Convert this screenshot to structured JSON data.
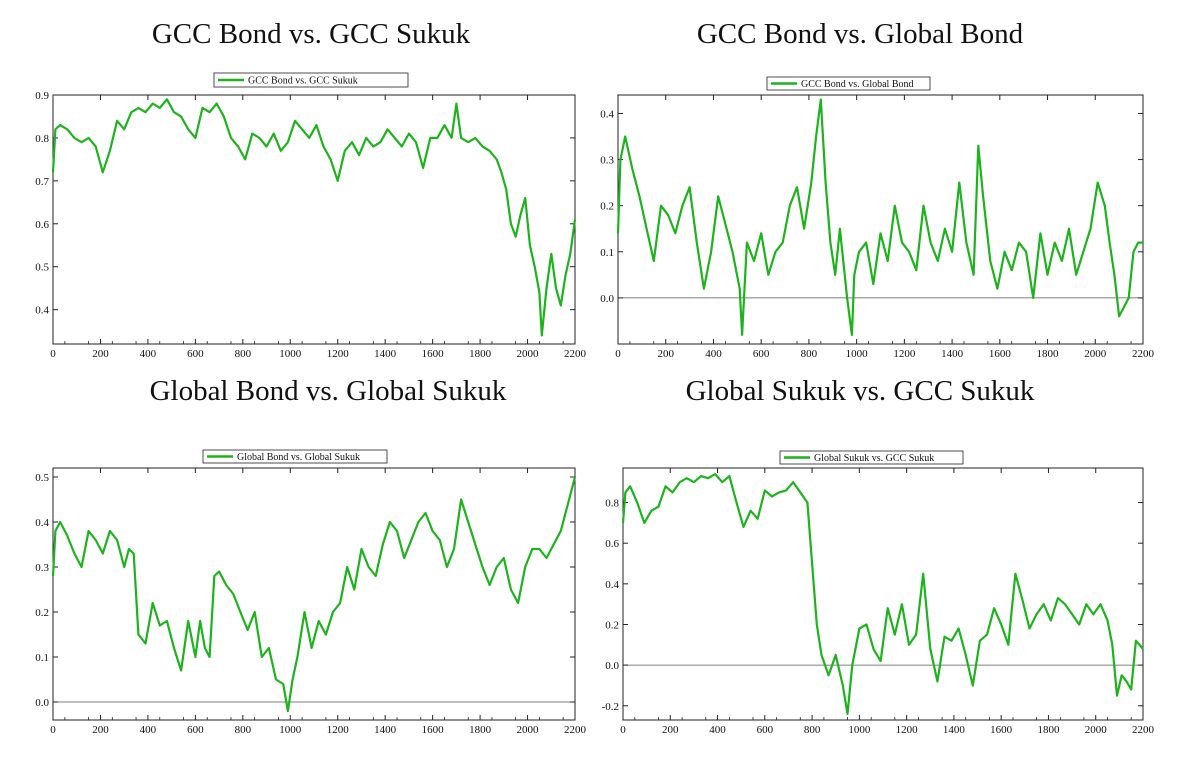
{
  "chart_data": [
    {
      "type": "line",
      "title": "GCC Bond vs. GCC Sukuk",
      "legend": "GCC Bond vs. GCC Sukuk",
      "xlim": [
        0,
        2200
      ],
      "ylim": [
        0.32,
        0.9
      ],
      "xticks": [
        0,
        200,
        400,
        600,
        800,
        1000,
        1200,
        1400,
        1600,
        1800,
        2000,
        2200
      ],
      "yticks": [
        0.4,
        0.5,
        0.6,
        0.7,
        0.8,
        0.9
      ],
      "ytick_labels": [
        "0.4",
        "0.5",
        "0.6",
        "0.7",
        "0.8",
        "0.9"
      ],
      "zero_line": false,
      "color": "#1db31d",
      "series": [
        {
          "x": [
            0,
            10,
            30,
            60,
            90,
            120,
            150,
            180,
            210,
            240,
            270,
            300,
            330,
            360,
            390,
            420,
            450,
            480,
            510,
            540,
            570,
            600,
            630,
            660,
            690,
            720,
            750,
            780,
            810,
            840,
            870,
            900,
            930,
            960,
            990,
            1020,
            1050,
            1080,
            1110,
            1140,
            1170,
            1200,
            1230,
            1260,
            1290,
            1320,
            1350,
            1380,
            1410,
            1440,
            1470,
            1500,
            1530,
            1560,
            1590,
            1620,
            1650,
            1680,
            1700,
            1720,
            1750,
            1780,
            1810,
            1840,
            1870,
            1890,
            1910,
            1930,
            1950,
            1970,
            1990,
            2010,
            2030,
            2050,
            2060,
            2080,
            2100,
            2120,
            2140,
            2160,
            2180,
            2200
          ],
          "y": [
            0.72,
            0.82,
            0.83,
            0.82,
            0.8,
            0.79,
            0.8,
            0.78,
            0.72,
            0.77,
            0.84,
            0.82,
            0.86,
            0.87,
            0.86,
            0.88,
            0.87,
            0.89,
            0.86,
            0.85,
            0.82,
            0.8,
            0.87,
            0.86,
            0.88,
            0.85,
            0.8,
            0.78,
            0.75,
            0.81,
            0.8,
            0.78,
            0.81,
            0.77,
            0.79,
            0.84,
            0.82,
            0.8,
            0.83,
            0.78,
            0.75,
            0.7,
            0.77,
            0.79,
            0.76,
            0.8,
            0.78,
            0.79,
            0.82,
            0.8,
            0.78,
            0.81,
            0.79,
            0.73,
            0.8,
            0.8,
            0.83,
            0.8,
            0.88,
            0.8,
            0.79,
            0.8,
            0.78,
            0.77,
            0.75,
            0.72,
            0.68,
            0.6,
            0.57,
            0.62,
            0.66,
            0.55,
            0.5,
            0.44,
            0.34,
            0.45,
            0.53,
            0.45,
            0.41,
            0.48,
            0.53,
            0.61
          ]
        }
      ]
    },
    {
      "type": "line",
      "title": "GCC Bond vs. Global Bond",
      "legend": "GCC Bond vs. Global Bond",
      "xlim": [
        0,
        2200
      ],
      "ylim": [
        -0.1,
        0.44
      ],
      "xticks": [
        0,
        200,
        400,
        600,
        800,
        1000,
        1200,
        1400,
        1600,
        1800,
        2000,
        2200
      ],
      "yticks": [
        0.0,
        0.1,
        0.2,
        0.3,
        0.4
      ],
      "ytick_labels": [
        "0.0",
        "0.1",
        "0.2",
        "0.3",
        "0.4"
      ],
      "zero_line": true,
      "color": "#1db31d",
      "series": [
        {
          "x": [
            0,
            10,
            30,
            60,
            90,
            120,
            150,
            180,
            210,
            240,
            270,
            300,
            330,
            360,
            390,
            420,
            450,
            480,
            510,
            520,
            540,
            570,
            600,
            630,
            660,
            690,
            720,
            750,
            780,
            810,
            830,
            850,
            870,
            890,
            910,
            930,
            960,
            980,
            990,
            1010,
            1040,
            1070,
            1100,
            1130,
            1160,
            1190,
            1220,
            1250,
            1280,
            1310,
            1340,
            1370,
            1400,
            1430,
            1460,
            1490,
            1510,
            1530,
            1560,
            1590,
            1620,
            1650,
            1680,
            1710,
            1740,
            1770,
            1800,
            1830,
            1860,
            1890,
            1920,
            1950,
            1980,
            2010,
            2040,
            2060,
            2080,
            2100,
            2120,
            2140,
            2160,
            2180,
            2200
          ],
          "y": [
            0.14,
            0.3,
            0.35,
            0.28,
            0.22,
            0.15,
            0.08,
            0.2,
            0.18,
            0.14,
            0.2,
            0.24,
            0.12,
            0.02,
            0.1,
            0.22,
            0.16,
            0.1,
            0.02,
            -0.08,
            0.12,
            0.08,
            0.14,
            0.05,
            0.1,
            0.12,
            0.2,
            0.24,
            0.15,
            0.25,
            0.35,
            0.43,
            0.25,
            0.12,
            0.05,
            0.15,
            0.0,
            -0.08,
            0.05,
            0.1,
            0.12,
            0.03,
            0.14,
            0.08,
            0.2,
            0.12,
            0.1,
            0.06,
            0.2,
            0.12,
            0.08,
            0.15,
            0.1,
            0.25,
            0.12,
            0.05,
            0.33,
            0.22,
            0.08,
            0.02,
            0.1,
            0.06,
            0.12,
            0.1,
            0.0,
            0.14,
            0.05,
            0.12,
            0.08,
            0.15,
            0.05,
            0.1,
            0.15,
            0.25,
            0.2,
            0.12,
            0.05,
            -0.04,
            -0.02,
            0.0,
            0.1,
            0.12,
            0.12
          ]
        }
      ]
    },
    {
      "type": "line",
      "title": "Global Bond vs. Global Sukuk",
      "legend": "Global Bond vs. Global Sukuk",
      "xlim": [
        0,
        2200
      ],
      "ylim": [
        -0.04,
        0.52
      ],
      "xticks": [
        0,
        200,
        400,
        600,
        800,
        1000,
        1200,
        1400,
        1600,
        1800,
        2000,
        2200
      ],
      "yticks": [
        0.0,
        0.1,
        0.2,
        0.3,
        0.4,
        0.5
      ],
      "ytick_labels": [
        "0.0",
        "0.1",
        "0.2",
        "0.3",
        "0.4",
        "0.5"
      ],
      "zero_line": true,
      "color": "#1db31d",
      "series": [
        {
          "x": [
            0,
            10,
            30,
            60,
            90,
            120,
            150,
            180,
            210,
            240,
            270,
            300,
            320,
            340,
            360,
            390,
            420,
            450,
            480,
            510,
            540,
            570,
            600,
            620,
            640,
            660,
            680,
            700,
            730,
            760,
            790,
            820,
            850,
            880,
            910,
            940,
            970,
            990,
            1010,
            1030,
            1060,
            1090,
            1120,
            1150,
            1180,
            1210,
            1240,
            1270,
            1300,
            1330,
            1360,
            1390,
            1420,
            1450,
            1480,
            1510,
            1540,
            1570,
            1600,
            1630,
            1660,
            1690,
            1720,
            1750,
            1780,
            1810,
            1840,
            1870,
            1900,
            1930,
            1960,
            1990,
            2020,
            2050,
            2080,
            2110,
            2140,
            2170,
            2200
          ],
          "y": [
            0.28,
            0.38,
            0.4,
            0.37,
            0.33,
            0.3,
            0.38,
            0.36,
            0.33,
            0.38,
            0.36,
            0.3,
            0.34,
            0.33,
            0.15,
            0.13,
            0.22,
            0.17,
            0.18,
            0.12,
            0.07,
            0.18,
            0.1,
            0.18,
            0.12,
            0.1,
            0.28,
            0.29,
            0.26,
            0.24,
            0.2,
            0.16,
            0.2,
            0.1,
            0.12,
            0.05,
            0.04,
            -0.02,
            0.05,
            0.1,
            0.2,
            0.12,
            0.18,
            0.15,
            0.2,
            0.22,
            0.3,
            0.25,
            0.34,
            0.3,
            0.28,
            0.35,
            0.4,
            0.38,
            0.32,
            0.36,
            0.4,
            0.42,
            0.38,
            0.36,
            0.3,
            0.34,
            0.45,
            0.4,
            0.35,
            0.3,
            0.26,
            0.3,
            0.32,
            0.25,
            0.22,
            0.3,
            0.34,
            0.34,
            0.32,
            0.35,
            0.38,
            0.44,
            0.5
          ]
        }
      ]
    },
    {
      "type": "line",
      "title": "Global Sukuk vs. GCC Sukuk",
      "legend": "Global Sukuk vs. GCC Sukuk",
      "xlim": [
        0,
        2200
      ],
      "ylim": [
        -0.27,
        0.97
      ],
      "xticks": [
        0,
        200,
        400,
        600,
        800,
        1000,
        1200,
        1400,
        1600,
        1800,
        2000,
        2200
      ],
      "yticks": [
        -0.2,
        0.0,
        0.2,
        0.4,
        0.6,
        0.8
      ],
      "ytick_labels": [
        "-0.2",
        "0.0",
        "0.2",
        "0.4",
        "0.6",
        "0.8"
      ],
      "zero_line": true,
      "color": "#1db31d",
      "series": [
        {
          "x": [
            0,
            10,
            30,
            60,
            90,
            120,
            150,
            180,
            210,
            240,
            270,
            300,
            330,
            360,
            390,
            420,
            450,
            480,
            510,
            540,
            570,
            600,
            630,
            660,
            690,
            720,
            750,
            780,
            800,
            820,
            840,
            870,
            900,
            930,
            950,
            970,
            1000,
            1030,
            1060,
            1090,
            1120,
            1150,
            1180,
            1210,
            1240,
            1270,
            1300,
            1330,
            1360,
            1390,
            1420,
            1450,
            1480,
            1510,
            1540,
            1570,
            1600,
            1630,
            1660,
            1690,
            1720,
            1750,
            1780,
            1810,
            1840,
            1870,
            1900,
            1930,
            1960,
            1990,
            2020,
            2050,
            2070,
            2090,
            2110,
            2130,
            2150,
            2170,
            2200
          ],
          "y": [
            0.7,
            0.85,
            0.88,
            0.8,
            0.7,
            0.76,
            0.78,
            0.88,
            0.85,
            0.9,
            0.92,
            0.9,
            0.93,
            0.92,
            0.94,
            0.9,
            0.93,
            0.8,
            0.68,
            0.76,
            0.72,
            0.86,
            0.83,
            0.85,
            0.86,
            0.9,
            0.85,
            0.8,
            0.5,
            0.2,
            0.05,
            -0.05,
            0.05,
            -0.1,
            -0.24,
            0.0,
            0.18,
            0.2,
            0.08,
            0.02,
            0.28,
            0.15,
            0.3,
            0.1,
            0.15,
            0.45,
            0.08,
            -0.08,
            0.14,
            0.12,
            0.18,
            0.05,
            -0.1,
            0.12,
            0.15,
            0.28,
            0.2,
            0.1,
            0.45,
            0.32,
            0.18,
            0.25,
            0.3,
            0.22,
            0.33,
            0.3,
            0.25,
            0.2,
            0.3,
            0.25,
            0.3,
            0.22,
            0.1,
            -0.15,
            -0.05,
            -0.08,
            -0.12,
            0.12,
            0.08
          ]
        }
      ]
    }
  ]
}
